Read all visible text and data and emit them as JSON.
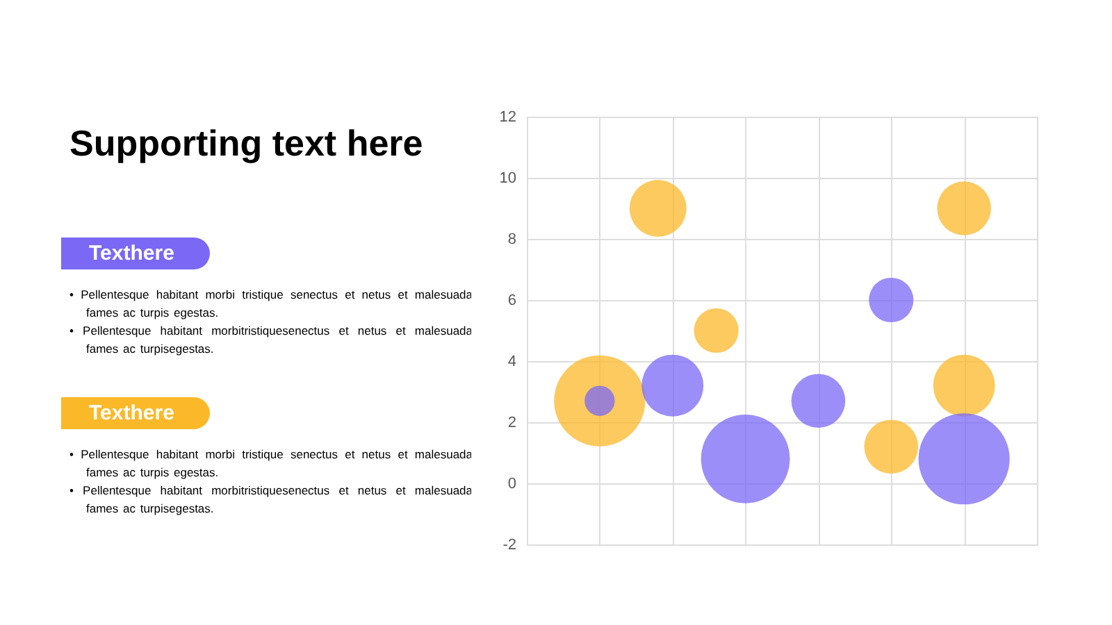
{
  "chart_data": [
    {
      "type": "other",
      "title": "Supporting text here",
      "annotations": [
        "Texthere",
        "• Pellentesque habitant morbi tristique senectus et netus et malesuada fames ac turpis egestas.",
        "• Pellentesque habitant morbitristiquesenectus et netus et malesuada fames ac turpisegestas.",
        "Texthere",
        "• Pellentesque habitant morbi tristique senectus et netus et malesuada fames ac turpis egestas.",
        "• Pellentesque habitant morbitristiquesenectus et netus et malesuada fames ac turpisegestas."
      ]
    },
    {
      "type": "bubble",
      "categories": [
        null,
        null,
        null,
        null,
        null,
        null,
        null,
        null,
        null,
        null,
        null,
        null,
        null,
        null,
        null,
        null,
        null,
        null,
        null,
        null,
        null,
        null,
        null,
        null,
        null,
        null,
        null,
        null,
        null,
        null,
        null,
        null,
        null,
        null,
        null,
        null
      ],
      "ylim": [
        -2,
        12
      ],
      "yticks": [
        -2,
        0,
        2,
        4,
        6,
        8,
        10,
        12
      ],
      "grid": true,
      "tick_labels": "y",
      "series": [
        {
          "color": "#7b68f5",
          "values": [
            null,
            null,
            null,
            null,
            null,
            2.7,
            null,
            null,
            null,
            null,
            3.2,
            null,
            null,
            null,
            null,
            0.8,
            null,
            null,
            null,
            null,
            2.7,
            null,
            null,
            null,
            null,
            6,
            null,
            null,
            null,
            null,
            0.8,
            null,
            null,
            null,
            null,
            null
          ],
          "sizes": [
            null,
            null,
            null,
            null,
            null,
            0.11,
            null,
            null,
            null,
            null,
            0.46,
            null,
            null,
            null,
            null,
            0.95,
            null,
            null,
            null,
            null,
            0.35,
            null,
            null,
            null,
            null,
            0.24,
            null,
            null,
            null,
            null,
            1,
            null,
            null,
            null,
            null,
            null
          ]
        },
        {
          "color": "#fbb829",
          "values": [
            null,
            null,
            null,
            null,
            null,
            2.7,
            null,
            null,
            null,
            9,
            null,
            null,
            null,
            5,
            null,
            null,
            null,
            null,
            null,
            null,
            null,
            null,
            null,
            null,
            null,
            1.2,
            null,
            null,
            null,
            null,
            9,
            null,
            null,
            null,
            null,
            null
          ],
          "sizes": [
            null,
            null,
            null,
            null,
            null,
            1,
            null,
            null,
            null,
            0.39,
            null,
            null,
            null,
            0.24,
            null,
            null,
            null,
            null,
            null,
            null,
            null,
            null,
            null,
            null,
            null,
            0.35,
            null,
            null,
            null,
            null,
            0.35,
            null,
            null,
            null,
            null,
            null
          ]
        },
        {
          "color": "#fbb829",
          "values": [
            null,
            null,
            null,
            null,
            null,
            null,
            null,
            null,
            null,
            null,
            null,
            null,
            null,
            null,
            null,
            null,
            null,
            null,
            null,
            null,
            null,
            null,
            null,
            null,
            null,
            null,
            null,
            null,
            null,
            null,
            3.2,
            null,
            null,
            null,
            null,
            null
          ],
          "sizes": [
            null,
            null,
            null,
            null,
            null,
            null,
            null,
            null,
            null,
            null,
            null,
            null,
            null,
            null,
            null,
            null,
            null,
            null,
            null,
            null,
            null,
            null,
            null,
            null,
            null,
            null,
            null,
            null,
            null,
            null,
            0.46,
            null,
            null,
            null,
            null,
            null
          ]
        }
      ]
    }
  ]
}
